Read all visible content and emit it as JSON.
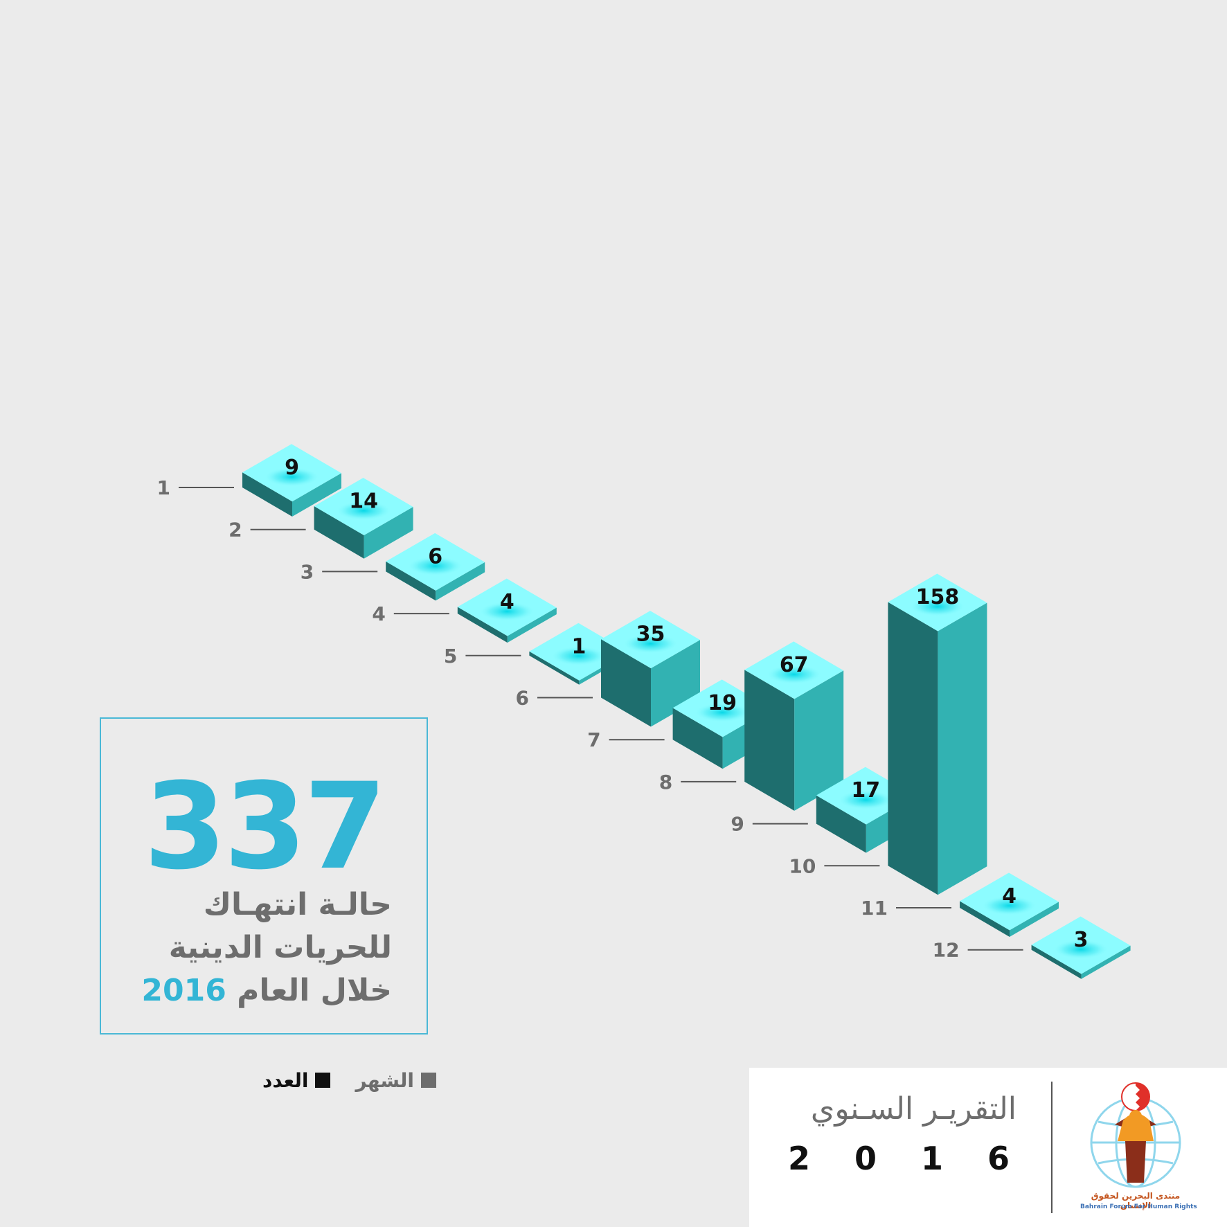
{
  "colors": {
    "background": "#ebebeb",
    "bar_top": "#8cfcff",
    "bar_left": "#1e6e6e",
    "bar_right": "#32b2b2",
    "accent_blue": "#33b5d5",
    "label_gray": "#6d6d6d",
    "value_text": "#111111"
  },
  "chart_data": {
    "type": "bar",
    "style": "isometric-3d",
    "categories": [
      "1",
      "2",
      "3",
      "4",
      "5",
      "6",
      "7",
      "8",
      "9",
      "10",
      "11",
      "12"
    ],
    "values": [
      9,
      14,
      6,
      4,
      1,
      35,
      19,
      67,
      17,
      158,
      4,
      3
    ],
    "data_labels": true
  },
  "summary": {
    "total": "337",
    "caption_line1": "حالـة انتهـاك",
    "caption_line2": "للحريات الدينية",
    "caption_line3_text": "خلال العام",
    "caption_line3_year": "2016"
  },
  "legend": {
    "month_label": "الشهر",
    "count_label": "العدد"
  },
  "footer": {
    "title": "التقريـر السـنوي",
    "year_digits": [
      "2",
      "0",
      "1",
      "6"
    ],
    "logo_icon": "bahrain-forum-logo",
    "logo_text_ar": "منتدى البحرين لحقوق الإنسان",
    "logo_text_en": "Bahrain Forum For Human Rights"
  }
}
